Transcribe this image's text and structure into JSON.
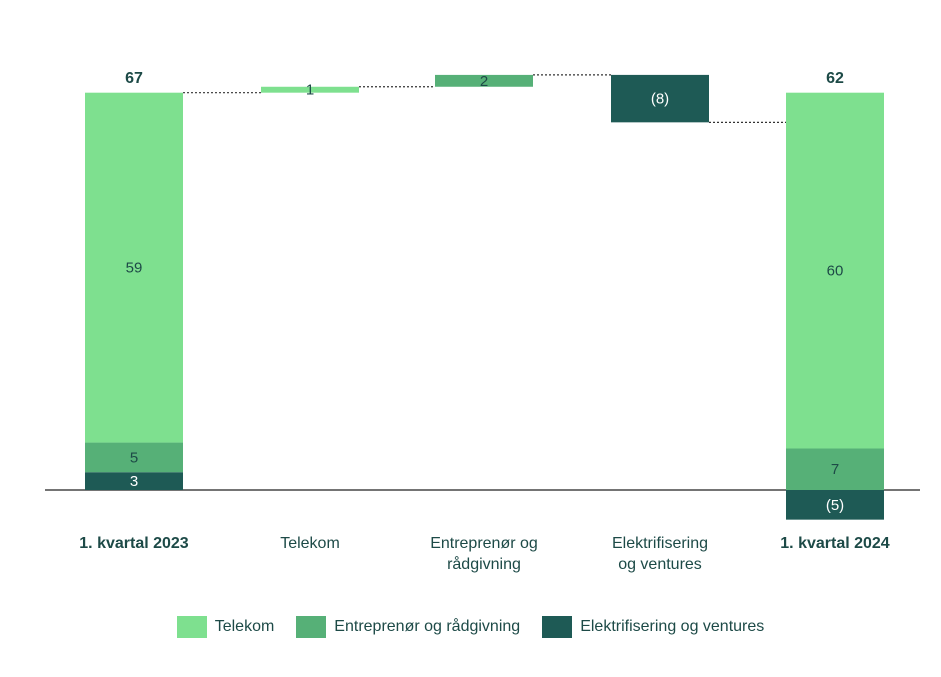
{
  "chart_data": {
    "type": "waterfall",
    "categories": [
      "1. kvartal 2023",
      "Telekom",
      "Entreprenør og rådgivning",
      "Elektrifisering og ventures",
      "1. kvartal 2024"
    ],
    "totals": [
      67,
      null,
      null,
      null,
      62
    ],
    "series": [
      {
        "name": "Telekom",
        "color": "#7ee08f",
        "values": [
          59,
          1,
          null,
          null,
          60
        ]
      },
      {
        "name": "Entreprenør og rådgivning",
        "color": "#56b077",
        "values": [
          5,
          null,
          2,
          null,
          7
        ]
      },
      {
        "name": "Elektrifisering og ventures",
        "color": "#1e5a55",
        "values": [
          3,
          null,
          null,
          -8,
          -5
        ],
        "value_labels": [
          "3",
          null,
          null,
          "(8)",
          "(5)"
        ]
      }
    ]
  }
}
